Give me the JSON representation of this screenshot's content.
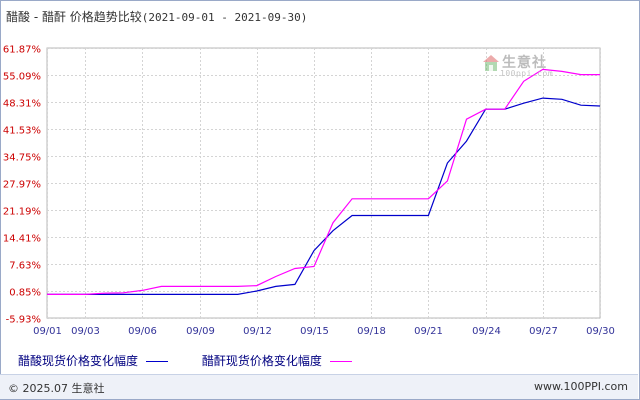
{
  "title": {
    "main": "醋酸 - 醋酐 价格趋势比较",
    "range": "(2021-09-01 - 2021-09-30)"
  },
  "watermark": {
    "text": "生意社",
    "sub": "100ppi.com"
  },
  "legend": [
    {
      "label": "醋酸现货价格变化幅度",
      "color": "#0000cc"
    },
    {
      "label": "醋酐现货价格变化幅度",
      "color": "#ff00ff"
    }
  ],
  "footer": {
    "copyright": "© 2025.07 生意社",
    "url": "www.100PPI.com"
  },
  "chart_data": {
    "type": "line",
    "title": "醋酸 - 醋酐 价格趋势比较",
    "xlabel": "",
    "ylabel": "",
    "x_ticks": [
      "09/01",
      "09/03",
      "09/06",
      "09/09",
      "09/12",
      "09/15",
      "09/18",
      "09/21",
      "09/24",
      "09/27",
      "09/30"
    ],
    "y_ticks": [
      "61.87%",
      "55.09%",
      "48.31%",
      "41.53%",
      "34.75%",
      "27.97%",
      "21.19%",
      "14.41%",
      "7.63%",
      "0.85%",
      "-5.93%"
    ],
    "ylim": [
      -5.93,
      61.87
    ],
    "xlim": [
      "2021-09-01",
      "2021-09-30"
    ],
    "grid": true,
    "legend_position": "bottom",
    "series": [
      {
        "name": "醋酸现货价格变化幅度",
        "color": "#0000cc",
        "points": [
          [
            "2021-09-01",
            0
          ],
          [
            "2021-09-04",
            0
          ],
          [
            "2021-09-05",
            0
          ],
          [
            "2021-09-11",
            0
          ],
          [
            "2021-09-12",
            0.85
          ],
          [
            "2021-09-13",
            2.0
          ],
          [
            "2021-09-14",
            2.5
          ],
          [
            "2021-09-15",
            11.0
          ],
          [
            "2021-09-16",
            16.0
          ],
          [
            "2021-09-17",
            19.8
          ],
          [
            "2021-09-18",
            19.8
          ],
          [
            "2021-09-21",
            19.8
          ],
          [
            "2021-09-22",
            33.0
          ],
          [
            "2021-09-23",
            38.5
          ],
          [
            "2021-09-24",
            46.5
          ],
          [
            "2021-09-25",
            46.5
          ],
          [
            "2021-09-26",
            48.0
          ],
          [
            "2021-09-27",
            49.3
          ],
          [
            "2021-09-28",
            49.0
          ],
          [
            "2021-09-29",
            47.5
          ],
          [
            "2021-09-30",
            47.3
          ]
        ]
      },
      {
        "name": "醋酐现货价格变化幅度",
        "color": "#ff00ff",
        "points": [
          [
            "2021-09-01",
            0
          ],
          [
            "2021-09-02",
            0
          ],
          [
            "2021-09-03",
            0
          ],
          [
            "2021-09-04",
            0.3
          ],
          [
            "2021-09-05",
            0.4
          ],
          [
            "2021-09-06",
            1.0
          ],
          [
            "2021-09-07",
            2.0
          ],
          [
            "2021-09-08",
            2.0
          ],
          [
            "2021-09-09",
            2.0
          ],
          [
            "2021-09-10",
            2.0
          ],
          [
            "2021-09-11",
            2.0
          ],
          [
            "2021-09-12",
            2.2
          ],
          [
            "2021-09-13",
            4.5
          ],
          [
            "2021-09-14",
            6.5
          ],
          [
            "2021-09-15",
            7.0
          ],
          [
            "2021-09-16",
            18.0
          ],
          [
            "2021-09-17",
            24.0
          ],
          [
            "2021-09-18",
            24.0
          ],
          [
            "2021-09-19",
            24.0
          ],
          [
            "2021-09-20",
            24.0
          ],
          [
            "2021-09-21",
            24.0
          ],
          [
            "2021-09-22",
            28.5
          ],
          [
            "2021-09-23",
            44.0
          ],
          [
            "2021-09-24",
            46.5
          ],
          [
            "2021-09-25",
            46.5
          ],
          [
            "2021-09-26",
            53.5
          ],
          [
            "2021-09-27",
            56.5
          ],
          [
            "2021-09-28",
            56.0
          ],
          [
            "2021-09-29",
            55.2
          ],
          [
            "2021-09-30",
            55.2
          ]
        ]
      }
    ]
  }
}
